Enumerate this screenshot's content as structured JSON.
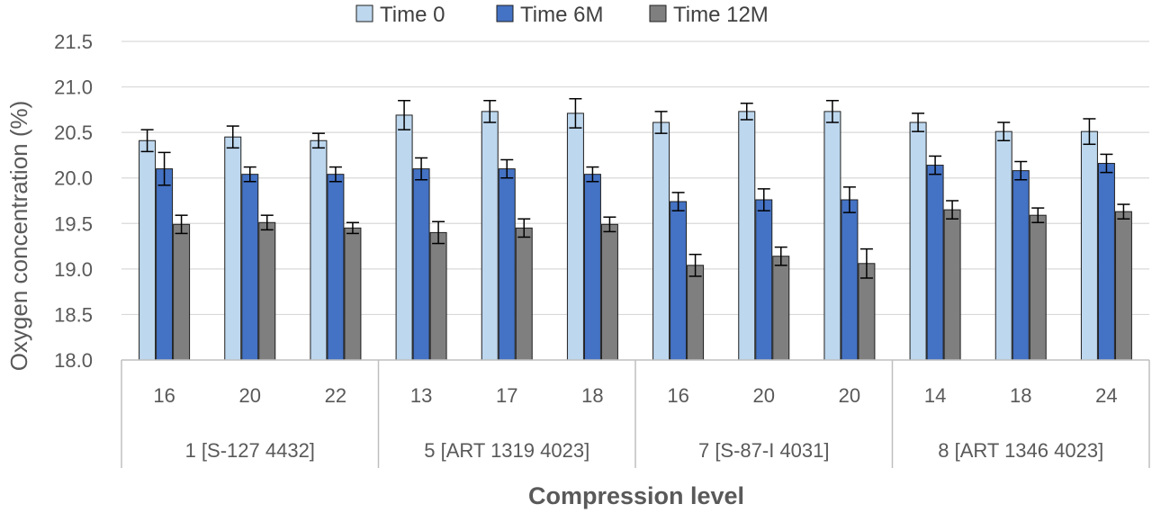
{
  "chart_data": {
    "type": "bar",
    "title": "",
    "ylabel": "Oxygen concentration (%)",
    "xlabel": "Compression level",
    "ylim": [
      18.0,
      21.5
    ],
    "yticks": [
      "18.0",
      "18.5",
      "19.0",
      "19.5",
      "20.0",
      "20.5",
      "21.0",
      "21.5"
    ],
    "grid": true,
    "legend_position": "top",
    "groups": [
      {
        "label": "1 [S-127 4432]",
        "categories": [
          "16",
          "20",
          "22"
        ]
      },
      {
        "label": "5 [ART 1319 4023]",
        "categories": [
          "13",
          "17",
          "18"
        ]
      },
      {
        "label": "7 [S-87-I 4031]",
        "categories": [
          "16",
          "20",
          "20"
        ]
      },
      {
        "label": "8 [ART 1346 4023]",
        "categories": [
          "14",
          "18",
          "24"
        ]
      }
    ],
    "series": [
      {
        "name": "Time 0",
        "color": "#bdd7ee",
        "values": [
          20.41,
          20.45,
          20.41,
          20.69,
          20.73,
          20.71,
          20.61,
          20.73,
          20.73,
          20.61,
          20.51,
          20.51
        ],
        "errors": [
          0.12,
          0.12,
          0.08,
          0.16,
          0.12,
          0.16,
          0.12,
          0.09,
          0.12,
          0.1,
          0.1,
          0.14
        ]
      },
      {
        "name": "Time 6M",
        "color": "#4472c4",
        "values": [
          20.1,
          20.04,
          20.04,
          20.1,
          20.1,
          20.04,
          19.74,
          19.76,
          19.76,
          20.14,
          20.08,
          20.16
        ],
        "errors": [
          0.18,
          0.08,
          0.08,
          0.12,
          0.1,
          0.08,
          0.1,
          0.12,
          0.14,
          0.1,
          0.1,
          0.1
        ]
      },
      {
        "name": "Time 12M",
        "color": "#7f7f7f",
        "values": [
          19.49,
          19.51,
          19.45,
          19.4,
          19.45,
          19.49,
          19.04,
          19.14,
          19.06,
          19.65,
          19.59,
          19.63
        ],
        "errors": [
          0.1,
          0.08,
          0.06,
          0.12,
          0.1,
          0.08,
          0.12,
          0.1,
          0.16,
          0.1,
          0.08,
          0.08
        ]
      }
    ]
  }
}
